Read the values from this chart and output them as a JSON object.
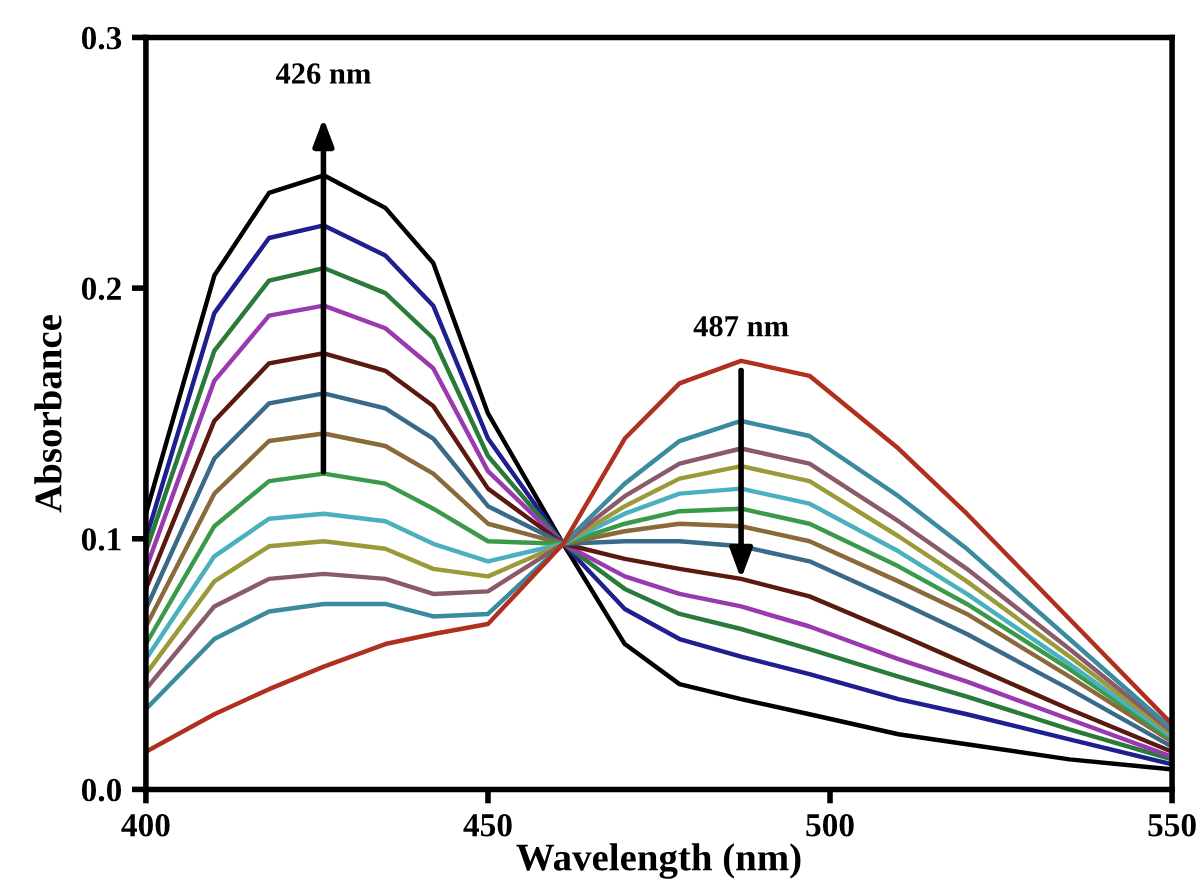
{
  "chart_data": {
    "type": "line",
    "xlabel": "Wavelength (nm)",
    "ylabel": "Absorbance",
    "x": [
      400,
      410,
      418,
      426,
      435,
      442,
      450,
      461,
      470,
      478,
      487,
      497,
      510,
      520,
      535,
      550
    ],
    "series": [
      {
        "color": "#000000",
        "values": [
          0.11,
          0.205,
          0.238,
          0.245,
          0.232,
          0.21,
          0.15,
          0.098,
          0.058,
          0.042,
          0.036,
          0.03,
          0.022,
          0.018,
          0.012,
          0.008
        ]
      },
      {
        "color": "#1f1f8f",
        "values": [
          0.1,
          0.19,
          0.22,
          0.225,
          0.213,
          0.193,
          0.14,
          0.098,
          0.072,
          0.06,
          0.053,
          0.046,
          0.036,
          0.03,
          0.02,
          0.01
        ]
      },
      {
        "color": "#2a7a3a",
        "values": [
          0.095,
          0.175,
          0.203,
          0.208,
          0.198,
          0.18,
          0.133,
          0.098,
          0.08,
          0.07,
          0.064,
          0.056,
          0.045,
          0.037,
          0.024,
          0.012
        ]
      },
      {
        "color": "#9a3ab0",
        "values": [
          0.088,
          0.163,
          0.189,
          0.193,
          0.184,
          0.168,
          0.127,
          0.098,
          0.085,
          0.078,
          0.073,
          0.065,
          0.052,
          0.043,
          0.028,
          0.013
        ]
      },
      {
        "color": "#5a1a10",
        "values": [
          0.08,
          0.147,
          0.17,
          0.174,
          0.167,
          0.153,
          0.12,
          0.098,
          0.092,
          0.088,
          0.084,
          0.077,
          0.062,
          0.05,
          0.032,
          0.015
        ]
      },
      {
        "color": "#3a6a8a",
        "values": [
          0.072,
          0.132,
          0.154,
          0.158,
          0.152,
          0.14,
          0.113,
          0.098,
          0.099,
          0.099,
          0.097,
          0.091,
          0.075,
          0.062,
          0.04,
          0.017
        ]
      },
      {
        "color": "#8a6a3a",
        "values": [
          0.065,
          0.118,
          0.139,
          0.142,
          0.137,
          0.126,
          0.106,
          0.098,
          0.103,
          0.106,
          0.105,
          0.099,
          0.083,
          0.07,
          0.045,
          0.019
        ]
      },
      {
        "color": "#3a9a4a",
        "values": [
          0.058,
          0.105,
          0.123,
          0.126,
          0.122,
          0.112,
          0.099,
          0.098,
          0.106,
          0.111,
          0.112,
          0.106,
          0.089,
          0.074,
          0.048,
          0.02
        ]
      },
      {
        "color": "#4ab0c0",
        "values": [
          0.052,
          0.093,
          0.108,
          0.11,
          0.107,
          0.098,
          0.091,
          0.098,
          0.11,
          0.118,
          0.12,
          0.114,
          0.095,
          0.078,
          0.05,
          0.021
        ]
      },
      {
        "color": "#9a9a3a",
        "values": [
          0.046,
          0.083,
          0.097,
          0.099,
          0.096,
          0.088,
          0.085,
          0.098,
          0.113,
          0.124,
          0.129,
          0.123,
          0.101,
          0.083,
          0.053,
          0.022
        ]
      },
      {
        "color": "#8a5a6a",
        "values": [
          0.04,
          0.073,
          0.084,
          0.086,
          0.084,
          0.078,
          0.079,
          0.098,
          0.117,
          0.13,
          0.136,
          0.13,
          0.107,
          0.088,
          0.056,
          0.023
        ]
      },
      {
        "color": "#3a8aa0",
        "values": [
          0.032,
          0.06,
          0.071,
          0.074,
          0.074,
          0.069,
          0.07,
          0.098,
          0.122,
          0.139,
          0.147,
          0.141,
          0.117,
          0.096,
          0.06,
          0.024
        ]
      },
      {
        "color": "#b03020",
        "values": [
          0.015,
          0.03,
          0.04,
          0.049,
          0.058,
          0.062,
          0.066,
          0.098,
          0.14,
          0.162,
          0.171,
          0.165,
          0.136,
          0.11,
          0.068,
          0.026
        ]
      }
    ],
    "annotations": [
      "426 nm",
      {
        "text": "487 nm",
        "x": 487,
        "y": 0.084
      }
    ],
    "xlim": [
      400,
      550
    ],
    "xticks": [
      400,
      450,
      500,
      550
    ],
    "ylim": [
      0,
      0.3
    ],
    "yticks": [
      {
        "value": 0,
        "label": "0.0"
      },
      {
        "value": 0.1,
        "label": "0.1"
      },
      {
        "value": 0.2,
        "label": "0.2"
      },
      {
        "value": 0.3,
        "label": "0.3"
      }
    ],
    "grid": false,
    "legend": false,
    "marker": "none",
    "line_style": "solid"
  }
}
